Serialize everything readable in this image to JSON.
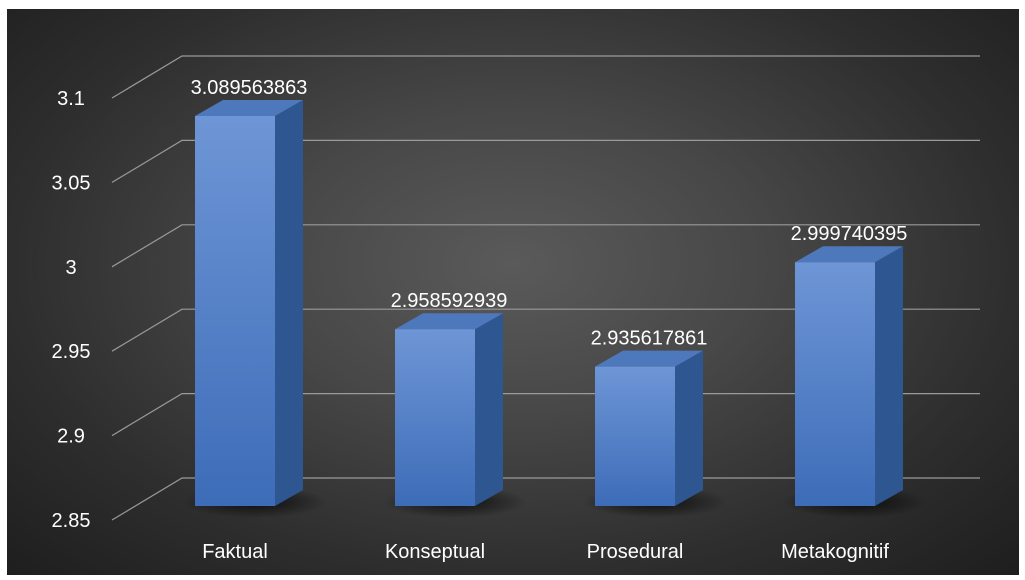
{
  "chart_data": {
    "type": "bar",
    "categories": [
      "Faktual",
      "Konseptual",
      "Prosedural",
      "Metakognitif"
    ],
    "values": [
      3.089563863,
      2.958592939,
      2.935617861,
      2.999740395
    ],
    "data_labels": [
      "3.089563863",
      "2.958592939",
      "2.935617861",
      "2.999740395"
    ],
    "yticks": [
      "2.85",
      "2.9",
      "2.95",
      "3",
      "3.05",
      "3.1"
    ],
    "ylim": [
      2.85,
      3.1
    ],
    "grid": true,
    "legend": "none",
    "style": "3d-column",
    "colors": {
      "background_center": "#5a5a5a",
      "background_edge": "#1e1e1e",
      "bar_front_top": "#6e96d6",
      "bar_front_bottom": "#3d6cb8",
      "bar_side": "#2e5690",
      "bar_top": "#4e78bc",
      "grid": "#9a9a9a",
      "text": "#ffffff"
    }
  }
}
